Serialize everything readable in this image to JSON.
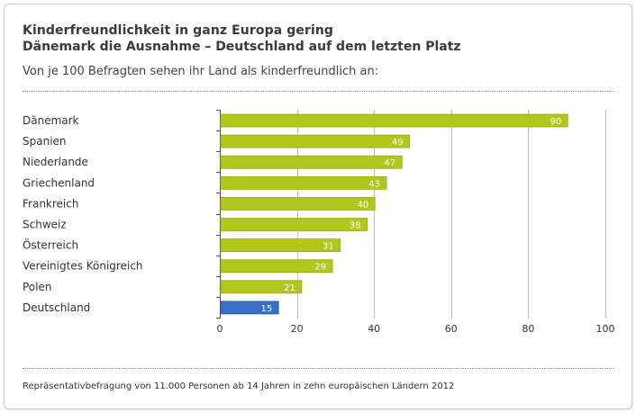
{
  "title": "Kinderfreundlichkeit in ganz Europa gering",
  "subtitle": "Dänemark die Ausnahme – Deutschland auf dem letzten Platz",
  "question": "Von je 100 Befragten sehen ihr Land als kinderfreundlich an:",
  "footer": "Repräsentativbefragung von 11.000 Personen ab 14 Jahren in zehn europäischen Ländern 2012",
  "colors": {
    "bar": "#b2c61c",
    "highlight": "#3a6fc8",
    "grid": "#bdbdbd",
    "axis": "#555555"
  },
  "chart_data": {
    "type": "bar",
    "orientation": "horizontal",
    "categories": [
      "Dänemark",
      "Spanien",
      "Niederlande",
      "Griechenland",
      "Frankreich",
      "Schweiz",
      "Österreich",
      "Vereinigtes Königreich",
      "Polen",
      "Deutschland"
    ],
    "values": [
      90,
      49,
      47,
      43,
      40,
      38,
      31,
      29,
      21,
      15
    ],
    "highlighted": "Deutschland",
    "xlim": [
      0,
      100
    ],
    "xticks": [
      0,
      20,
      40,
      60,
      80,
      100
    ],
    "grid": true
  }
}
